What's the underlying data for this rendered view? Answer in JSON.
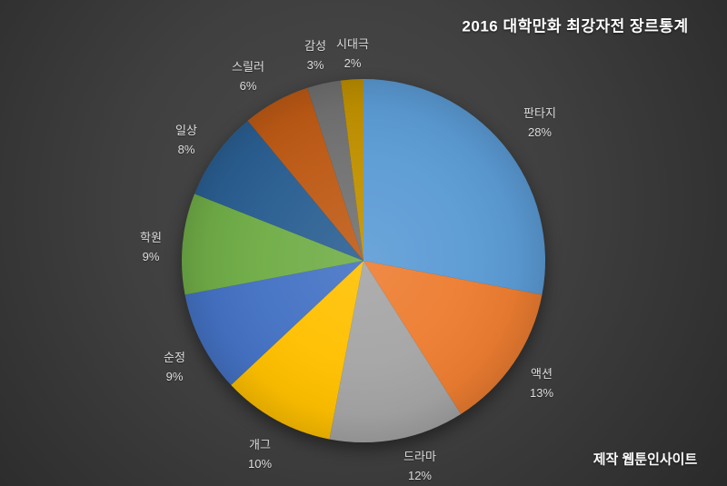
{
  "title": "2016 대학만화 최강자전 장르통계",
  "credit": "제작 웹툰인사이트",
  "colors": {
    "background_center": "#4a4a4a",
    "background_edge": "#2a2a2a",
    "label_text": "#dcdcdc",
    "title_text": "#ffffff"
  },
  "chart_data": {
    "type": "pie",
    "title": "2016 대학만화 최강자전 장르통계",
    "unit": "%",
    "direction": "clockwise",
    "start_angle_deg": 0,
    "legend_position": "none",
    "labels_position": "outside",
    "categories": [
      "판타지",
      "액션",
      "드라마",
      "개그",
      "순정",
      "학원",
      "일상",
      "스릴러",
      "감성",
      "시대극"
    ],
    "values": [
      28,
      13,
      12,
      10,
      9,
      9,
      8,
      6,
      3,
      2
    ],
    "slices": [
      {
        "name": "fantasy",
        "label": "판타지",
        "value": 28,
        "pct_label": "28%",
        "color": "#5B9BD5"
      },
      {
        "name": "action",
        "label": "액션",
        "value": 13,
        "pct_label": "13%",
        "color": "#ED7D31"
      },
      {
        "name": "drama",
        "label": "드라마",
        "value": 12,
        "pct_label": "12%",
        "color": "#A5A5A5"
      },
      {
        "name": "comedy",
        "label": "개그",
        "value": 10,
        "pct_label": "10%",
        "color": "#FFC000"
      },
      {
        "name": "romance",
        "label": "순정",
        "value": 9,
        "pct_label": "9%",
        "color": "#4472C4"
      },
      {
        "name": "school",
        "label": "학원",
        "value": 9,
        "pct_label": "9%",
        "color": "#70AD47"
      },
      {
        "name": "daily-life",
        "label": "일상",
        "value": 8,
        "pct_label": "8%",
        "color": "#2A5F92"
      },
      {
        "name": "thriller",
        "label": "스릴러",
        "value": 6,
        "pct_label": "6%",
        "color": "#BE5A15"
      },
      {
        "name": "emotional",
        "label": "감성",
        "value": 3,
        "pct_label": "3%",
        "color": "#717171"
      },
      {
        "name": "period-drama",
        "label": "시대극",
        "value": 2,
        "pct_label": "2%",
        "color": "#BF9000"
      }
    ]
  }
}
